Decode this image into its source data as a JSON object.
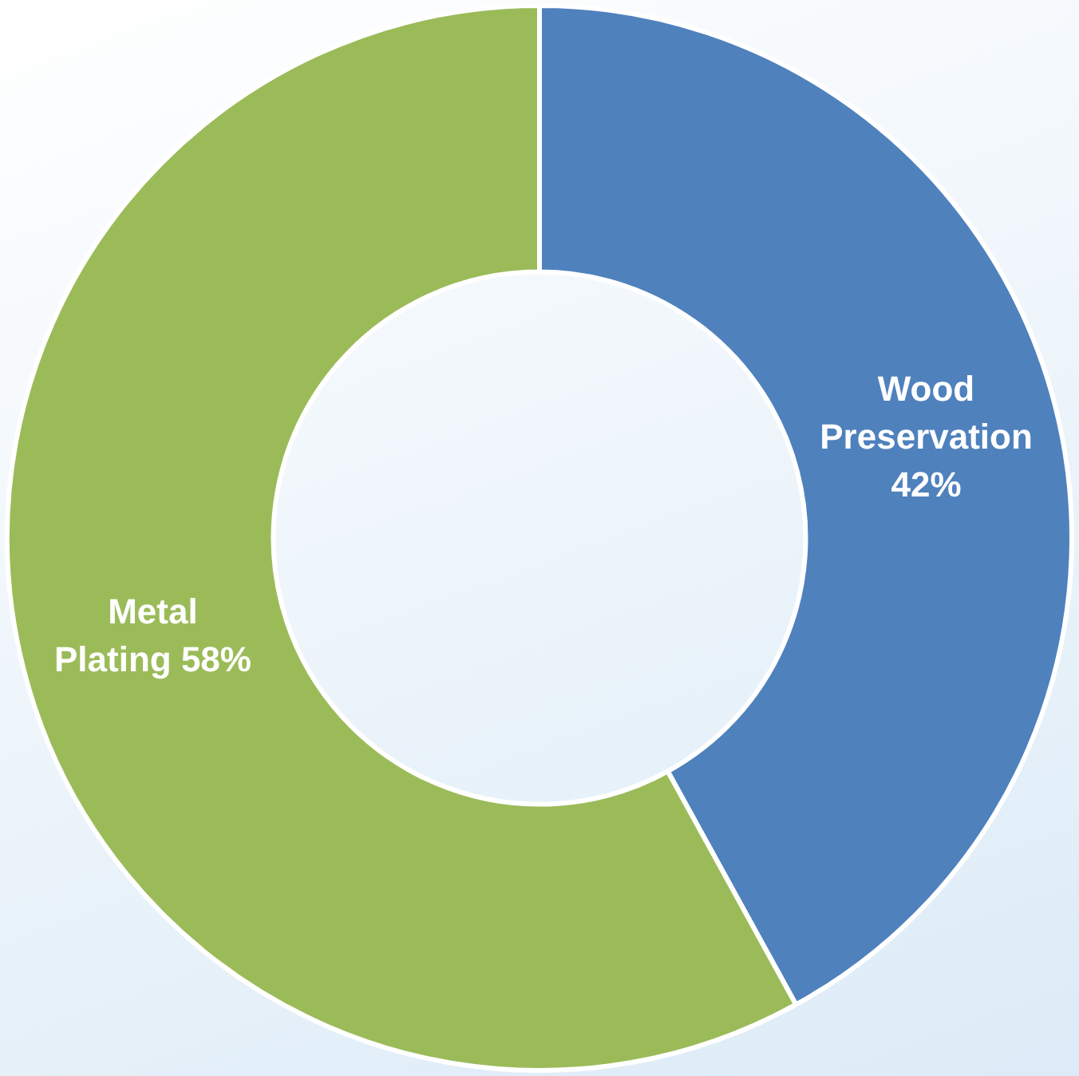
{
  "chart_data": {
    "type": "donut",
    "categories": [
      "Wood Preservation",
      "Metal Plating"
    ],
    "values": [
      42,
      58
    ],
    "colors": [
      "#4f81bd",
      "#9bbb59"
    ],
    "value_labels": [
      "42%",
      "58%"
    ],
    "legend": false
  }
}
